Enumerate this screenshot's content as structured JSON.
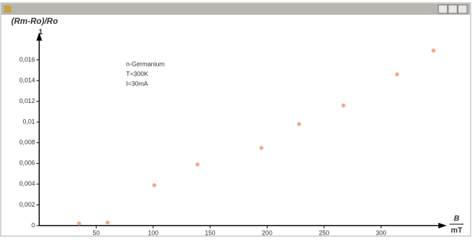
{
  "chart_data": {
    "type": "scatter",
    "y_label": "(Rm-Ro)/Ro",
    "y_unit": "1",
    "x_label": "B",
    "x_unit": "mT",
    "annotations": [
      "n-Germanium",
      "T=300K",
      "I=30mA"
    ],
    "x": [
      35,
      60,
      101,
      139,
      195,
      228,
      267,
      314,
      346
    ],
    "series": [
      {
        "color": "#f4a582",
        "values": [
          0.0002,
          0.0003,
          0.0039,
          0.0059,
          0.0075,
          0.0098,
          0.0116,
          0.0146,
          0.0169
        ]
      }
    ],
    "xlim": [
      0,
      354
    ],
    "xticks": [
      50,
      100,
      150,
      200,
      250,
      300
    ],
    "ylim": [
      0,
      0.0184
    ],
    "yticks": [
      0,
      {
        "value": 0.002,
        "label": "0,002"
      },
      {
        "value": 0.004,
        "label": "0,004"
      },
      {
        "value": 0.006,
        "label": "0,006"
      },
      {
        "value": 0.008,
        "label": "0,008"
      },
      {
        "value": 0.01,
        "label": "0,01"
      },
      {
        "value": 0.012,
        "label": "0,012"
      },
      {
        "value": 0.014,
        "label": "0,014"
      },
      {
        "value": 0.016,
        "label": "0,016"
      }
    ]
  }
}
